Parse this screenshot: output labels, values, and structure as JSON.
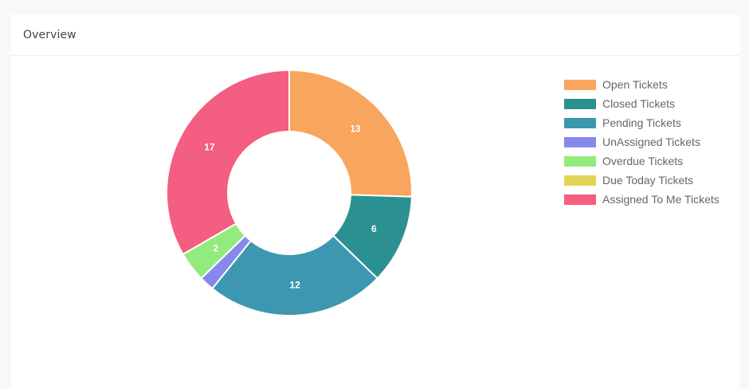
{
  "card": {
    "title": "Overview"
  },
  "chart_data": {
    "type": "pie",
    "title": "",
    "donut": true,
    "legend_position": "right",
    "slices": [
      {
        "name": "Open Tickets",
        "value": 13,
        "color": "#f8a55d"
      },
      {
        "name": "Closed Tickets",
        "value": 6,
        "color": "#2b9190"
      },
      {
        "name": "Pending Tickets",
        "value": 12,
        "color": "#3e97b0"
      },
      {
        "name": "UnAssigned Tickets",
        "value": 1,
        "color": "#8689eb"
      },
      {
        "name": "Overdue Tickets",
        "value": 2,
        "color": "#92eb7c"
      },
      {
        "name": "Due Today Tickets",
        "value": 0,
        "color": "#e3d35a"
      },
      {
        "name": "Assigned To Me Tickets",
        "value": 17,
        "color": "#f35e81"
      }
    ],
    "data_labels": [
      "13",
      "6",
      "12",
      "",
      "2",
      "",
      "17"
    ]
  }
}
